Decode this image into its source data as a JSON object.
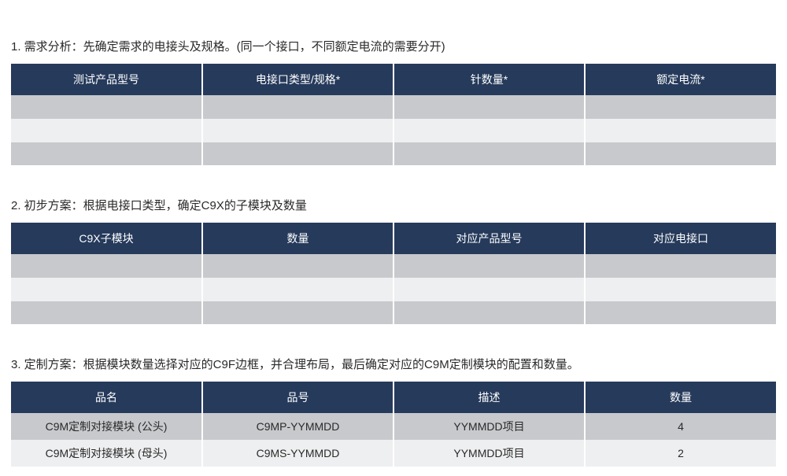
{
  "styling": {
    "header_bg": "#263a5b",
    "header_text_color": "#ffffff",
    "row_odd_bg": "#c7c9cc",
    "row_even_bg": "#eeeff0",
    "body_text_color": "#2a2a2a",
    "font_family": "Microsoft YaHei",
    "title_fontsize": 15,
    "header_fontsize": 14,
    "cell_fontsize": 14,
    "border_color": "#ffffff",
    "border_width": 2
  },
  "sections": [
    {
      "title": "1. 需求分析：先确定需求的电接头及规格。(同一个接口，不同额定电流的需要分开)",
      "columns": [
        "测试产品型号",
        "电接口类型/规格*",
        "针数量*",
        "额定电流*"
      ],
      "rows": [
        [
          "",
          "",
          "",
          ""
        ],
        [
          "",
          "",
          "",
          ""
        ],
        [
          "",
          "",
          "",
          ""
        ]
      ]
    },
    {
      "title": "2. 初步方案：根据电接口类型，确定C9X的子模块及数量",
      "columns": [
        "C9X子模块",
        "数量",
        "对应产品型号",
        "对应电接口"
      ],
      "rows": [
        [
          "",
          "",
          "",
          ""
        ],
        [
          "",
          "",
          "",
          ""
        ],
        [
          "",
          "",
          "",
          ""
        ]
      ]
    },
    {
      "title": "3. 定制方案：根据模块数量选择对应的C9F边框，并合理布局，最后确定对应的C9M定制模块的配置和数量。",
      "columns": [
        "品名",
        "品号",
        "描述",
        "数量"
      ],
      "rows": [
        [
          "C9M定制对接模块 (公头)",
          "C9MP-YYMMDD",
          "YYMMDD项目",
          "4"
        ],
        [
          "C9M定制对接模块 (母头)",
          "C9MS-YYMMDD",
          "YYMMDD项目",
          "2"
        ]
      ]
    }
  ]
}
